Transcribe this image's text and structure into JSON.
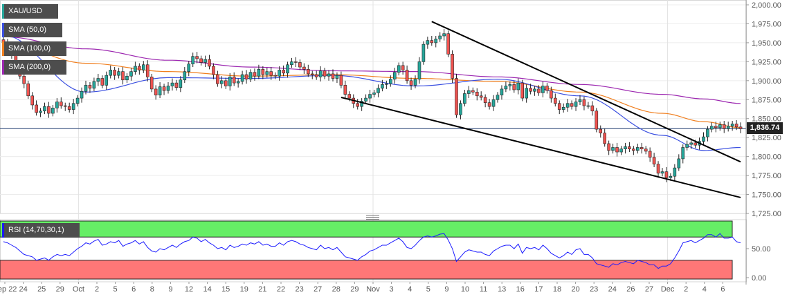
{
  "chart_data": [
    {
      "type": "candlestick",
      "symbol": "XAU/USD",
      "last_price": "1,836.74",
      "ylim": [
        1725,
        2000
      ],
      "y_ticks": [
        "2,000.00",
        "1,975.00",
        "1,950.00",
        "1,925.00",
        "1,900.00",
        "1,875.00",
        "1,850.00",
        "1,825.00",
        "1,800.00",
        "1,775.00",
        "1,750.00",
        "1,725.00"
      ],
      "x_ticks": [
        "Sep 22",
        "24",
        "25",
        "29",
        "Oct",
        "2",
        "5",
        "6",
        "8",
        "9",
        "12",
        "14",
        "15",
        "19",
        "21",
        "22",
        "23",
        "27",
        "28",
        "29",
        "Nov",
        "3",
        "4",
        "5",
        "9",
        "10",
        "11",
        "13",
        "16",
        "17",
        "18",
        "20",
        "23",
        "24",
        "26",
        "27",
        "Dec",
        "2",
        "4",
        "6"
      ],
      "close_series": [
        [
          0,
          1950
        ],
        [
          1,
          1942
        ],
        [
          2,
          1933
        ],
        [
          3,
          1920
        ],
        [
          4,
          1906
        ],
        [
          5,
          1896
        ],
        [
          6,
          1880
        ],
        [
          7,
          1868
        ],
        [
          8,
          1858
        ],
        [
          9,
          1860
        ],
        [
          10,
          1866
        ],
        [
          11,
          1857
        ],
        [
          12,
          1864
        ],
        [
          13,
          1872
        ],
        [
          14,
          1867
        ],
        [
          15,
          1866
        ],
        [
          16,
          1862
        ],
        [
          17,
          1870
        ],
        [
          18,
          1877
        ],
        [
          19,
          1886
        ],
        [
          20,
          1894
        ],
        [
          21,
          1890
        ],
        [
          22,
          1899
        ],
        [
          23,
          1903
        ],
        [
          24,
          1894
        ],
        [
          25,
          1907
        ],
        [
          26,
          1914
        ],
        [
          27,
          1907
        ],
        [
          28,
          1912
        ],
        [
          29,
          1901
        ],
        [
          30,
          1906
        ],
        [
          31,
          1912
        ],
        [
          32,
          1919
        ],
        [
          33,
          1914
        ],
        [
          34,
          1921
        ],
        [
          35,
          1905
        ],
        [
          36,
          1889
        ],
        [
          37,
          1881
        ],
        [
          38,
          1892
        ],
        [
          39,
          1887
        ],
        [
          40,
          1893
        ],
        [
          41,
          1897
        ],
        [
          42,
          1891
        ],
        [
          43,
          1901
        ],
        [
          44,
          1912
        ],
        [
          45,
          1922
        ],
        [
          46,
          1932
        ],
        [
          47,
          1929
        ],
        [
          48,
          1924
        ],
        [
          49,
          1928
        ],
        [
          50,
          1919
        ],
        [
          51,
          1908
        ],
        [
          52,
          1896
        ],
        [
          53,
          1900
        ],
        [
          54,
          1893
        ],
        [
          55,
          1905
        ],
        [
          56,
          1897
        ],
        [
          57,
          1899
        ],
        [
          58,
          1908
        ],
        [
          59,
          1902
        ],
        [
          60,
          1911
        ],
        [
          61,
          1906
        ],
        [
          62,
          1915
        ],
        [
          63,
          1908
        ],
        [
          64,
          1912
        ],
        [
          65,
          1907
        ],
        [
          66,
          1906
        ],
        [
          67,
          1914
        ],
        [
          68,
          1910
        ],
        [
          69,
          1921
        ],
        [
          70,
          1925
        ],
        [
          71,
          1924
        ],
        [
          72,
          1918
        ],
        [
          73,
          1915
        ],
        [
          74,
          1909
        ],
        [
          75,
          1908
        ],
        [
          76,
          1905
        ],
        [
          77,
          1913
        ],
        [
          78,
          1906
        ],
        [
          79,
          1909
        ],
        [
          80,
          1903
        ],
        [
          81,
          1907
        ],
        [
          82,
          1894
        ],
        [
          83,
          1882
        ],
        [
          84,
          1877
        ],
        [
          85,
          1870
        ],
        [
          86,
          1866
        ],
        [
          87,
          1873
        ],
        [
          88,
          1877
        ],
        [
          89,
          1882
        ],
        [
          90,
          1884
        ],
        [
          91,
          1890
        ],
        [
          92,
          1895
        ],
        [
          93,
          1896
        ],
        [
          94,
          1902
        ],
        [
          95,
          1911
        ],
        [
          96,
          1920
        ],
        [
          97,
          1914
        ],
        [
          98,
          1900
        ],
        [
          99,
          1894
        ],
        [
          100,
          1902
        ],
        [
          101,
          1925
        ],
        [
          102,
          1948
        ],
        [
          103,
          1953
        ],
        [
          104,
          1950
        ],
        [
          105,
          1955
        ],
        [
          106,
          1959
        ],
        [
          107,
          1962
        ],
        [
          108,
          1935
        ],
        [
          109,
          1903
        ],
        [
          110,
          1855
        ],
        [
          111,
          1870
        ],
        [
          112,
          1883
        ],
        [
          113,
          1887
        ],
        [
          114,
          1885
        ],
        [
          115,
          1880
        ],
        [
          116,
          1878
        ],
        [
          117,
          1871
        ],
        [
          118,
          1866
        ],
        [
          119,
          1875
        ],
        [
          120,
          1881
        ],
        [
          121,
          1889
        ],
        [
          122,
          1893
        ],
        [
          123,
          1895
        ],
        [
          124,
          1888
        ],
        [
          125,
          1897
        ],
        [
          126,
          1877
        ],
        [
          127,
          1890
        ],
        [
          128,
          1886
        ],
        [
          129,
          1889
        ],
        [
          130,
          1884
        ],
        [
          131,
          1893
        ],
        [
          132,
          1887
        ],
        [
          133,
          1877
        ],
        [
          134,
          1870
        ],
        [
          135,
          1862
        ],
        [
          136,
          1865
        ],
        [
          137,
          1870
        ],
        [
          138,
          1866
        ],
        [
          139,
          1872
        ],
        [
          140,
          1875
        ],
        [
          141,
          1867
        ],
        [
          142,
          1867
        ],
        [
          143,
          1860
        ],
        [
          144,
          1836
        ],
        [
          145,
          1831
        ],
        [
          146,
          1817
        ],
        [
          147,
          1808
        ],
        [
          148,
          1812
        ],
        [
          149,
          1806
        ],
        [
          150,
          1810
        ],
        [
          151,
          1813
        ],
        [
          152,
          1810
        ],
        [
          153,
          1808
        ],
        [
          154,
          1812
        ],
        [
          155,
          1810
        ],
        [
          156,
          1807
        ],
        [
          157,
          1799
        ],
        [
          158,
          1790
        ],
        [
          159,
          1778
        ],
        [
          160,
          1780
        ],
        [
          161,
          1772
        ],
        [
          162,
          1774
        ],
        [
          163,
          1785
        ],
        [
          164,
          1797
        ],
        [
          165,
          1812
        ],
        [
          166,
          1816
        ],
        [
          167,
          1818
        ],
        [
          168,
          1815
        ],
        [
          169,
          1820
        ],
        [
          170,
          1826
        ],
        [
          171,
          1836
        ],
        [
          172,
          1840
        ],
        [
          173,
          1838
        ],
        [
          174,
          1842
        ],
        [
          175,
          1837
        ],
        [
          176,
          1840
        ],
        [
          177,
          1843
        ],
        [
          178,
          1839
        ],
        [
          179,
          1836.74
        ]
      ],
      "sma_50": [
        [
          0,
          1960
        ],
        [
          20,
          1885
        ],
        [
          40,
          1904
        ],
        [
          60,
          1903
        ],
        [
          80,
          1907
        ],
        [
          100,
          1893
        ],
        [
          120,
          1902
        ],
        [
          140,
          1880
        ],
        [
          160,
          1828
        ],
        [
          170,
          1808
        ],
        [
          179,
          1812
        ]
      ],
      "sma_100": [
        [
          0,
          1950
        ],
        [
          20,
          1923
        ],
        [
          40,
          1912
        ],
        [
          60,
          1906
        ],
        [
          80,
          1908
        ],
        [
          100,
          1903
        ],
        [
          120,
          1899
        ],
        [
          140,
          1885
        ],
        [
          160,
          1857
        ],
        [
          170,
          1846
        ],
        [
          179,
          1838
        ]
      ],
      "sma_200": [
        [
          0,
          1958
        ],
        [
          20,
          1942
        ],
        [
          40,
          1927
        ],
        [
          60,
          1918
        ],
        [
          80,
          1913
        ],
        [
          100,
          1912
        ],
        [
          120,
          1905
        ],
        [
          140,
          1895
        ],
        [
          160,
          1882
        ],
        [
          170,
          1876
        ],
        [
          179,
          1870
        ]
      ],
      "trendlines": [
        {
          "x1": 104,
          "y1": 1978,
          "x2": 179,
          "y2": 1793
        },
        {
          "x1": 82,
          "y1": 1878,
          "x2": 179,
          "y2": 1746
        }
      ]
    },
    {
      "type": "line",
      "name": "RSI (14,70,30,1)",
      "ylim": [
        0,
        100
      ],
      "y_ticks": [
        "50.00",
        "0.00"
      ],
      "overbought": 70,
      "oversold": 30,
      "values": [
        62,
        60,
        56,
        52,
        46,
        40,
        38,
        36,
        30,
        32,
        34,
        30,
        36,
        40,
        38,
        40,
        38,
        44,
        50,
        54,
        60,
        58,
        63,
        66,
        56,
        58,
        62,
        60,
        64,
        54,
        58,
        60,
        64,
        58,
        62,
        52,
        46,
        44,
        50,
        48,
        52,
        56,
        52,
        58,
        62,
        64,
        70,
        68,
        62,
        66,
        60,
        56,
        50,
        52,
        48,
        56,
        52,
        54,
        58,
        56,
        60,
        58,
        62,
        56,
        58,
        54,
        54,
        60,
        56,
        62,
        64,
        62,
        58,
        56,
        52,
        50,
        48,
        56,
        50,
        52,
        48,
        52,
        44,
        36,
        34,
        32,
        30,
        36,
        40,
        46,
        48,
        52,
        56,
        56,
        60,
        64,
        68,
        62,
        52,
        50,
        56,
        64,
        70,
        72,
        70,
        72,
        75,
        76,
        65,
        50,
        28,
        36,
        44,
        48,
        46,
        44,
        44,
        40,
        38,
        46,
        50,
        54,
        56,
        56,
        50,
        58,
        42,
        52,
        50,
        52,
        48,
        56,
        50,
        42,
        38,
        34,
        38,
        44,
        40,
        48,
        50,
        40,
        40,
        34,
        24,
        22,
        20,
        18,
        24,
        22,
        26,
        28,
        26,
        24,
        30,
        28,
        26,
        22,
        22,
        16,
        20,
        20,
        24,
        34,
        46,
        60,
        62,
        64,
        60,
        64,
        68,
        74,
        74,
        70,
        76,
        68,
        68,
        70,
        62,
        60
      ]
    }
  ],
  "legends": {
    "price": "XAU/USD",
    "sma50": "SMA (50,0)",
    "sma100": "SMA (100,0)",
    "sma200": "SMA (200,0)",
    "rsi": "RSI (14,70,30,1)"
  },
  "colors": {
    "bull": "#26a69a",
    "bear": "#ef5350",
    "candle_outline": "#222222",
    "sma50": "#3a4fe0",
    "sma100": "#f07f1f",
    "sma200": "#9c27b0",
    "rsi_line": "#1a1aff",
    "overbought_fill": "#66ee66",
    "oversold_fill": "#ff7777"
  }
}
